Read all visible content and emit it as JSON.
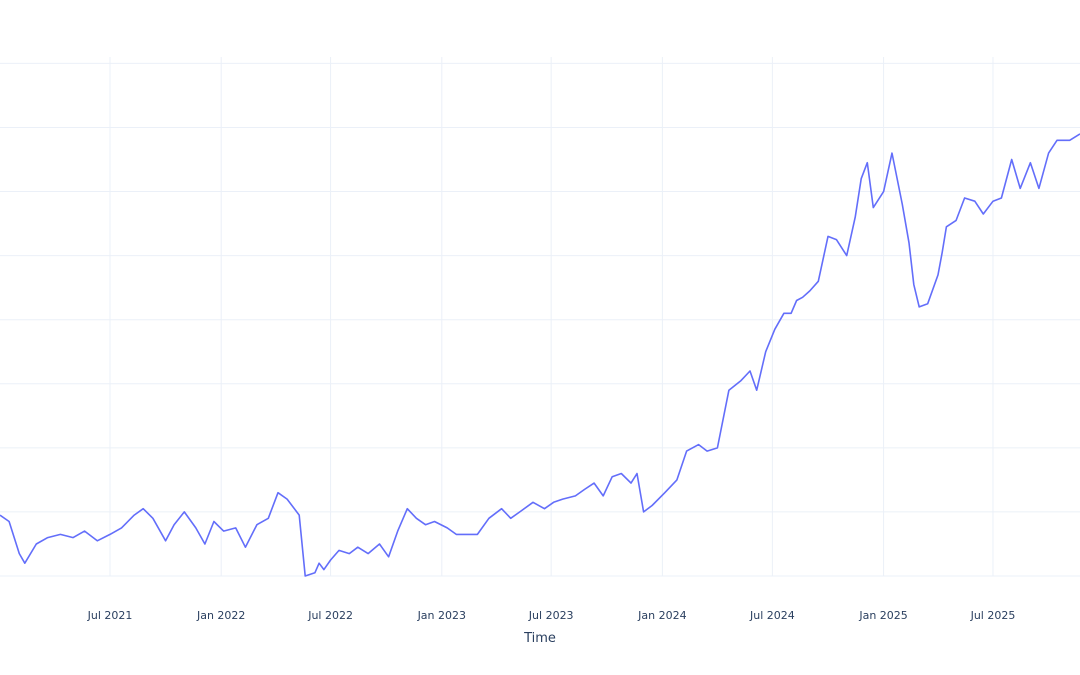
{
  "chart_data": {
    "type": "line",
    "xlabel": "Time",
    "ylabel": "",
    "x_tick_labels": [
      "Jul 2021",
      "Jan 2022",
      "Jul 2022",
      "Jan 2023",
      "Jul 2023",
      "Jan 2024",
      "Jul 2024",
      "Jan 2025",
      "Jul 2025"
    ],
    "x_tick_dates": [
      "2021-07-01",
      "2022-01-01",
      "2022-07-01",
      "2023-01-01",
      "2023-07-01",
      "2024-01-01",
      "2024-07-01",
      "2025-01-01",
      "2025-07-01"
    ],
    "xlim": [
      "2020-12-31",
      "2025-11-22"
    ],
    "ylim": [
      0,
      8.1
    ],
    "grid": true,
    "colors": {
      "line": "#636efa",
      "grid": "#ebf0f8",
      "text": "#2a3f5f"
    },
    "series": [
      {
        "x": [
          "2020-12-31",
          "2021-01-15",
          "2021-02-01",
          "2021-02-10",
          "2021-03-01",
          "2021-03-20",
          "2021-04-10",
          "2021-05-01",
          "2021-05-20",
          "2021-06-10",
          "2021-07-01",
          "2021-07-20",
          "2021-08-10",
          "2021-08-25",
          "2021-09-10",
          "2021-10-01",
          "2021-10-15",
          "2021-11-01",
          "2021-11-20",
          "2021-12-05",
          "2021-12-20",
          "2022-01-05",
          "2022-01-25",
          "2022-02-10",
          "2022-03-01",
          "2022-03-20",
          "2022-04-05",
          "2022-04-20",
          "2022-05-10",
          "2022-05-20",
          "2022-06-05",
          "2022-06-12",
          "2022-06-20",
          "2022-07-01",
          "2022-07-15",
          "2022-08-01",
          "2022-08-15",
          "2022-09-01",
          "2022-09-20",
          "2022-10-05",
          "2022-10-20",
          "2022-11-05",
          "2022-11-20",
          "2022-12-05",
          "2022-12-20",
          "2023-01-10",
          "2023-01-25",
          "2023-02-10",
          "2023-03-01",
          "2023-03-20",
          "2023-04-10",
          "2023-04-25",
          "2023-05-10",
          "2023-06-01",
          "2023-06-20",
          "2023-07-05",
          "2023-07-20",
          "2023-08-10",
          "2023-08-25",
          "2023-09-10",
          "2023-09-25",
          "2023-10-10",
          "2023-10-25",
          "2023-11-10",
          "2023-11-20",
          "2023-12-01",
          "2023-12-15",
          "2024-01-05",
          "2024-01-25",
          "2024-02-10",
          "2024-03-01",
          "2024-03-15",
          "2024-04-01",
          "2024-04-20",
          "2024-05-10",
          "2024-05-25",
          "2024-06-05",
          "2024-06-20",
          "2024-07-05",
          "2024-07-20",
          "2024-08-01",
          "2024-08-10",
          "2024-08-20",
          "2024-09-01",
          "2024-09-15",
          "2024-10-01",
          "2024-10-15",
          "2024-11-01",
          "2024-11-15",
          "2024-11-25",
          "2024-12-05",
          "2024-12-15",
          "2025-01-01",
          "2025-01-15",
          "2025-02-01",
          "2025-02-12",
          "2025-02-20",
          "2025-03-01",
          "2025-03-15",
          "2025-04-01",
          "2025-04-08",
          "2025-04-15",
          "2025-05-01",
          "2025-05-15",
          "2025-06-01",
          "2025-06-15",
          "2025-07-01",
          "2025-07-15",
          "2025-08-01",
          "2025-08-15",
          "2025-09-01",
          "2025-09-15",
          "2025-10-01",
          "2025-10-15",
          "2025-10-25",
          "2025-11-05",
          "2025-11-22"
        ],
        "y": [
          0.95,
          0.85,
          0.35,
          0.2,
          0.5,
          0.6,
          0.65,
          0.6,
          0.7,
          0.55,
          0.65,
          0.75,
          0.95,
          1.05,
          0.9,
          0.55,
          0.8,
          1.0,
          0.75,
          0.5,
          0.85,
          0.7,
          0.75,
          0.45,
          0.8,
          0.9,
          1.3,
          1.2,
          0.95,
          0.0,
          0.05,
          0.2,
          0.1,
          0.25,
          0.4,
          0.35,
          0.45,
          0.35,
          0.5,
          0.3,
          0.7,
          1.05,
          0.9,
          0.8,
          0.85,
          0.75,
          0.65,
          0.65,
          0.65,
          0.9,
          1.05,
          0.9,
          1.0,
          1.15,
          1.05,
          1.15,
          1.2,
          1.25,
          1.35,
          1.45,
          1.25,
          1.55,
          1.6,
          1.45,
          1.6,
          1.0,
          1.1,
          1.3,
          1.5,
          1.95,
          2.05,
          1.95,
          2.0,
          2.9,
          3.05,
          3.2,
          2.9,
          3.5,
          3.85,
          4.1,
          4.1,
          4.3,
          4.35,
          4.45,
          4.6,
          5.3,
          5.25,
          5.0,
          5.6,
          6.2,
          6.45,
          5.75,
          6.0,
          6.6,
          5.8,
          5.2,
          4.55,
          4.2,
          4.25,
          4.7,
          5.05,
          5.45,
          5.55,
          5.9,
          5.85,
          5.65,
          5.85,
          5.9,
          6.5,
          6.05,
          6.45,
          6.05,
          6.6,
          6.8,
          6.8,
          6.8,
          6.9
        ]
      }
    ]
  }
}
